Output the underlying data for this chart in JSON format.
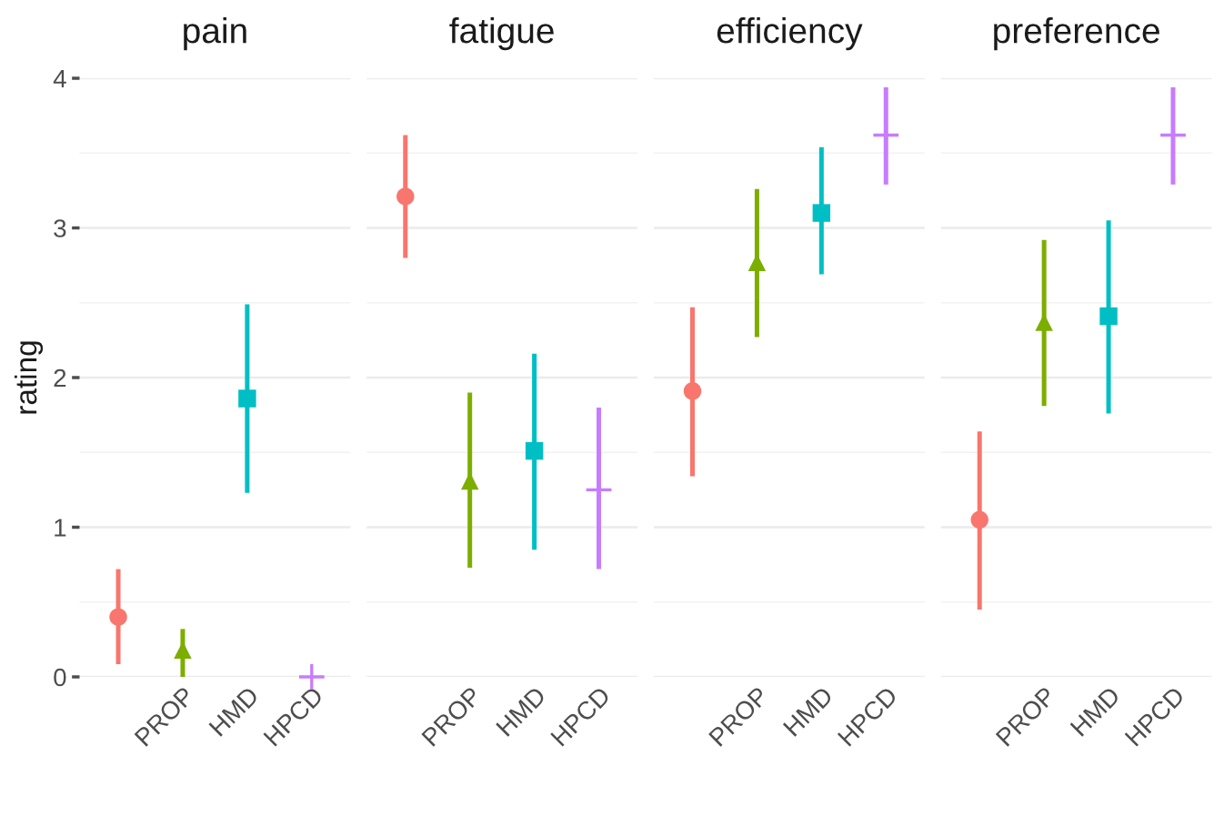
{
  "chart_data": [
    {
      "type": "scatter",
      "title": "pain",
      "ylabel": "rating",
      "categories": [
        null,
        "PROP",
        "HMD",
        "HPCD"
      ],
      "ylim": [
        0,
        4
      ],
      "yticks": [
        0,
        1,
        2,
        3,
        4
      ],
      "grid": "y",
      "series": [
        {
          "color": "#f8766d",
          "marker": "circle",
          "values": [
            0.4,
            null,
            null,
            null
          ],
          "errors": [
            [
              0.085,
              0.72
            ],
            null,
            null,
            null
          ]
        },
        {
          "color": "#7cae00",
          "marker": "triangle",
          "values": [
            null,
            0.18,
            null,
            null
          ],
          "errors": [
            null,
            [
              0,
              0.32
            ],
            null,
            null
          ]
        },
        {
          "color": "#00bfc4",
          "marker": "square",
          "values": [
            null,
            null,
            1.86,
            null
          ],
          "errors": [
            null,
            null,
            [
              1.23,
              2.49
            ],
            null
          ]
        },
        {
          "color": "#c77cff",
          "marker": "cross",
          "values": [
            null,
            null,
            null,
            0
          ],
          "errors": [
            null,
            null,
            null,
            null
          ]
        }
      ]
    },
    {
      "type": "scatter",
      "title": "fatigue",
      "categories": [
        null,
        "PROP",
        "HMD",
        "HPCD"
      ],
      "ylim": [
        0,
        4
      ],
      "yticks": [
        0,
        1,
        2,
        3,
        4
      ],
      "grid": "y",
      "tick_labels": "x",
      "series": [
        {
          "color": "#f8766d",
          "marker": "circle",
          "values": [
            3.21,
            null,
            null,
            null
          ],
          "errors": [
            [
              2.8,
              3.62
            ],
            null,
            null,
            null
          ]
        },
        {
          "color": "#7cae00",
          "marker": "triangle",
          "values": [
            null,
            1.31,
            null,
            null
          ],
          "errors": [
            null,
            [
              0.73,
              1.9
            ],
            null,
            null
          ]
        },
        {
          "color": "#00bfc4",
          "marker": "square",
          "values": [
            null,
            null,
            1.51,
            null
          ],
          "errors": [
            null,
            null,
            [
              0.85,
              2.16
            ],
            null
          ]
        },
        {
          "color": "#c77cff",
          "marker": "cross",
          "values": [
            null,
            null,
            null,
            1.25
          ],
          "errors": [
            null,
            null,
            null,
            [
              0.72,
              1.8
            ]
          ]
        }
      ]
    },
    {
      "type": "scatter",
      "title": "efficiency",
      "categories": [
        null,
        "PROP",
        "HMD",
        "HPCD"
      ],
      "ylim": [
        0,
        4
      ],
      "yticks": [
        0,
        1,
        2,
        3,
        4
      ],
      "grid": "y",
      "tick_labels": "x",
      "series": [
        {
          "color": "#f8766d",
          "marker": "circle",
          "values": [
            1.91,
            null,
            null,
            null
          ],
          "errors": [
            [
              1.34,
              2.47
            ],
            null,
            null,
            null
          ]
        },
        {
          "color": "#7cae00",
          "marker": "triangle",
          "values": [
            null,
            2.77,
            null,
            null
          ],
          "errors": [
            null,
            [
              2.27,
              3.26
            ],
            null,
            null
          ]
        },
        {
          "color": "#00bfc4",
          "marker": "square",
          "values": [
            null,
            null,
            3.1,
            null
          ],
          "errors": [
            null,
            null,
            [
              2.69,
              3.54
            ],
            null
          ]
        },
        {
          "color": "#c77cff",
          "marker": "cross",
          "values": [
            null,
            null,
            null,
            3.62
          ],
          "errors": [
            null,
            null,
            null,
            [
              3.29,
              3.94
            ]
          ]
        }
      ]
    },
    {
      "type": "scatter",
      "title": "preference",
      "categories": [
        null,
        "PROP",
        "HMD",
        "HPCD"
      ],
      "ylim": [
        0,
        4
      ],
      "yticks": [
        0,
        1,
        2,
        3,
        4
      ],
      "grid": "y",
      "tick_labels": "x",
      "series": [
        {
          "color": "#f8766d",
          "marker": "circle",
          "values": [
            1.05,
            null,
            null,
            null
          ],
          "errors": [
            [
              0.45,
              1.64
            ],
            null,
            null,
            null
          ]
        },
        {
          "color": "#7cae00",
          "marker": "triangle",
          "values": [
            null,
            2.37,
            null,
            null
          ],
          "errors": [
            null,
            [
              1.81,
              2.92
            ],
            null,
            null
          ]
        },
        {
          "color": "#00bfc4",
          "marker": "square",
          "values": [
            null,
            null,
            2.41,
            null
          ],
          "errors": [
            null,
            null,
            [
              1.76,
              3.05
            ],
            null
          ]
        },
        {
          "color": "#c77cff",
          "marker": "cross",
          "values": [
            null,
            null,
            null,
            3.62
          ],
          "errors": [
            null,
            null,
            null,
            [
              3.29,
              3.94
            ]
          ]
        }
      ]
    }
  ]
}
